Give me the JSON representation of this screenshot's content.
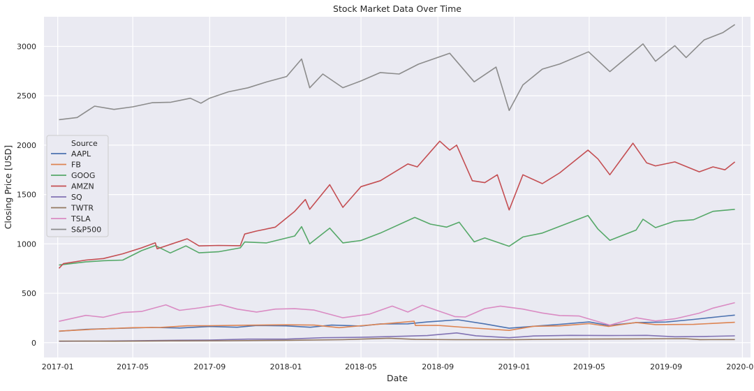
{
  "chart_data": {
    "type": "line",
    "title": "Stock Market Data Over Time",
    "xlabel": "Date",
    "ylabel": "Closing Price [USD]",
    "x_range": [
      "2016-12-10",
      "2020-01-14"
    ],
    "ylim": [
      -150,
      3300
    ],
    "grid": true,
    "background": "#eaeaf2",
    "x_ticks": [
      {
        "date": "2017-01-01",
        "label": "2017-01"
      },
      {
        "date": "2017-05-01",
        "label": "2017-05"
      },
      {
        "date": "2017-09-01",
        "label": "2017-09"
      },
      {
        "date": "2018-01-01",
        "label": "2018-01"
      },
      {
        "date": "2018-05-01",
        "label": "2018-05"
      },
      {
        "date": "2018-09-01",
        "label": "2018-09"
      },
      {
        "date": "2019-01-01",
        "label": "2019-01"
      },
      {
        "date": "2019-05-01",
        "label": "2019-05"
      },
      {
        "date": "2019-09-01",
        "label": "2019-09"
      },
      {
        "date": "2020-01-01",
        "label": "2020-01"
      }
    ],
    "y_ticks": [
      0,
      500,
      1000,
      1500,
      2000,
      2500,
      3000
    ],
    "legend": {
      "title": "Source",
      "placement": "center-left"
    },
    "series": [
      {
        "name": "AAPL",
        "color": "#4c72b0",
        "points": [
          [
            "2017-01-03",
            116
          ],
          [
            "2017-02-15",
            135
          ],
          [
            "2017-04-01",
            144
          ],
          [
            "2017-06-01",
            154
          ],
          [
            "2017-07-15",
            148
          ],
          [
            "2017-09-01",
            164
          ],
          [
            "2017-10-15",
            156
          ],
          [
            "2017-11-15",
            174
          ],
          [
            "2018-01-01",
            170
          ],
          [
            "2018-02-09",
            156
          ],
          [
            "2018-03-15",
            178
          ],
          [
            "2018-05-01",
            169
          ],
          [
            "2018-06-01",
            190
          ],
          [
            "2018-07-15",
            191
          ],
          [
            "2018-08-15",
            210
          ],
          [
            "2018-10-03",
            232
          ],
          [
            "2018-11-15",
            190
          ],
          [
            "2018-12-24",
            146
          ],
          [
            "2019-02-01",
            166
          ],
          [
            "2019-03-15",
            186
          ],
          [
            "2019-05-01",
            210
          ],
          [
            "2019-06-01",
            175
          ],
          [
            "2019-07-15",
            203
          ],
          [
            "2019-09-01",
            209
          ],
          [
            "2019-10-15",
            235
          ],
          [
            "2019-12-01",
            267
          ],
          [
            "2019-12-20",
            279
          ]
        ]
      },
      {
        "name": "FB",
        "color": "#dd8452",
        "points": [
          [
            "2017-01-03",
            117
          ],
          [
            "2017-03-01",
            136
          ],
          [
            "2017-05-01",
            152
          ],
          [
            "2017-06-15",
            155
          ],
          [
            "2017-07-27",
            171
          ],
          [
            "2017-09-01",
            172
          ],
          [
            "2017-10-15",
            176
          ],
          [
            "2018-01-01",
            181
          ],
          [
            "2018-02-15",
            178
          ],
          [
            "2018-03-27",
            152
          ],
          [
            "2018-05-01",
            172
          ],
          [
            "2018-06-15",
            195
          ],
          [
            "2018-07-25",
            217
          ],
          [
            "2018-07-27",
            174
          ],
          [
            "2018-09-01",
            175
          ],
          [
            "2018-10-15",
            154
          ],
          [
            "2018-12-24",
            124
          ],
          [
            "2019-02-01",
            166
          ],
          [
            "2019-03-15",
            170
          ],
          [
            "2019-05-01",
            193
          ],
          [
            "2019-06-01",
            165
          ],
          [
            "2019-07-15",
            204
          ],
          [
            "2019-08-15",
            183
          ],
          [
            "2019-10-15",
            185
          ],
          [
            "2019-12-01",
            201
          ],
          [
            "2019-12-20",
            206
          ]
        ]
      },
      {
        "name": "GOOG",
        "color": "#55a868",
        "points": [
          [
            "2017-01-03",
            786
          ],
          [
            "2017-02-15",
            818
          ],
          [
            "2017-03-15",
            830
          ],
          [
            "2017-04-15",
            836
          ],
          [
            "2017-05-15",
            932
          ],
          [
            "2017-06-06",
            983
          ],
          [
            "2017-06-30",
            908
          ],
          [
            "2017-07-25",
            980
          ],
          [
            "2017-08-15",
            910
          ],
          [
            "2017-09-15",
            920
          ],
          [
            "2017-10-20",
            960
          ],
          [
            "2017-10-27",
            1019
          ],
          [
            "2017-12-01",
            1010
          ],
          [
            "2018-01-15",
            1080
          ],
          [
            "2018-01-26",
            1175
          ],
          [
            "2018-02-08",
            1001
          ],
          [
            "2018-03-12",
            1160
          ],
          [
            "2018-04-02",
            1010
          ],
          [
            "2018-05-01",
            1035
          ],
          [
            "2018-06-01",
            1110
          ],
          [
            "2018-07-26",
            1268
          ],
          [
            "2018-08-20",
            1200
          ],
          [
            "2018-09-15",
            1170
          ],
          [
            "2018-10-05",
            1220
          ],
          [
            "2018-10-29",
            1021
          ],
          [
            "2018-11-15",
            1060
          ],
          [
            "2018-12-24",
            976
          ],
          [
            "2019-01-15",
            1070
          ],
          [
            "2019-02-15",
            1110
          ],
          [
            "2019-04-29",
            1288
          ],
          [
            "2019-05-15",
            1150
          ],
          [
            "2019-06-03",
            1036
          ],
          [
            "2019-07-15",
            1140
          ],
          [
            "2019-07-26",
            1250
          ],
          [
            "2019-08-15",
            1165
          ],
          [
            "2019-09-15",
            1230
          ],
          [
            "2019-10-15",
            1245
          ],
          [
            "2019-11-15",
            1330
          ],
          [
            "2019-12-20",
            1350
          ]
        ]
      },
      {
        "name": "AMZN",
        "color": "#c44e52",
        "points": [
          [
            "2017-01-03",
            753
          ],
          [
            "2017-01-10",
            800
          ],
          [
            "2017-02-15",
            836
          ],
          [
            "2017-03-15",
            852
          ],
          [
            "2017-04-15",
            900
          ],
          [
            "2017-05-15",
            960
          ],
          [
            "2017-06-06",
            1011
          ],
          [
            "2017-06-09",
            950
          ],
          [
            "2017-07-27",
            1052
          ],
          [
            "2017-08-15",
            980
          ],
          [
            "2017-09-15",
            985
          ],
          [
            "2017-10-20",
            982
          ],
          [
            "2017-10-27",
            1100
          ],
          [
            "2017-11-15",
            1130
          ],
          [
            "2017-12-15",
            1170
          ],
          [
            "2018-01-15",
            1330
          ],
          [
            "2018-02-01",
            1450
          ],
          [
            "2018-02-08",
            1350
          ],
          [
            "2018-03-12",
            1600
          ],
          [
            "2018-04-02",
            1370
          ],
          [
            "2018-05-01",
            1580
          ],
          [
            "2018-06-01",
            1640
          ],
          [
            "2018-07-15",
            1810
          ],
          [
            "2018-07-30",
            1780
          ],
          [
            "2018-09-04",
            2040
          ],
          [
            "2018-09-20",
            1950
          ],
          [
            "2018-10-01",
            2000
          ],
          [
            "2018-10-26",
            1640
          ],
          [
            "2018-11-15",
            1620
          ],
          [
            "2018-12-05",
            1700
          ],
          [
            "2018-12-24",
            1344
          ],
          [
            "2019-01-15",
            1700
          ],
          [
            "2019-02-15",
            1610
          ],
          [
            "2019-03-15",
            1720
          ],
          [
            "2019-04-29",
            1950
          ],
          [
            "2019-05-15",
            1860
          ],
          [
            "2019-06-03",
            1700
          ],
          [
            "2019-07-10",
            2020
          ],
          [
            "2019-08-01",
            1820
          ],
          [
            "2019-08-15",
            1790
          ],
          [
            "2019-09-15",
            1830
          ],
          [
            "2019-10-24",
            1730
          ],
          [
            "2019-11-15",
            1780
          ],
          [
            "2019-12-04",
            1750
          ],
          [
            "2019-12-20",
            1830
          ]
        ]
      },
      {
        "name": "SQ",
        "color": "#8172b3",
        "points": [
          [
            "2017-01-03",
            14
          ],
          [
            "2017-03-01",
            16
          ],
          [
            "2017-05-01",
            20
          ],
          [
            "2017-07-01",
            24
          ],
          [
            "2017-09-01",
            27
          ],
          [
            "2017-11-01",
            36
          ],
          [
            "2018-01-01",
            36
          ],
          [
            "2018-03-01",
            50
          ],
          [
            "2018-05-01",
            54
          ],
          [
            "2018-07-01",
            64
          ],
          [
            "2018-08-15",
            72
          ],
          [
            "2018-10-01",
            99
          ],
          [
            "2018-11-01",
            70
          ],
          [
            "2018-12-24",
            50
          ],
          [
            "2019-02-01",
            68
          ],
          [
            "2019-04-01",
            74
          ],
          [
            "2019-06-01",
            72
          ],
          [
            "2019-08-01",
            74
          ],
          [
            "2019-09-15",
            60
          ],
          [
            "2019-11-01",
            63
          ],
          [
            "2019-12-20",
            69
          ]
        ]
      },
      {
        "name": "TWTR",
        "color": "#937860",
        "points": [
          [
            "2017-01-03",
            16
          ],
          [
            "2017-04-01",
            15
          ],
          [
            "2017-07-01",
            18
          ],
          [
            "2017-10-01",
            20
          ],
          [
            "2018-01-01",
            24
          ],
          [
            "2018-04-01",
            30
          ],
          [
            "2018-06-15",
            45
          ],
          [
            "2018-07-27",
            33
          ],
          [
            "2018-10-01",
            30
          ],
          [
            "2019-01-01",
            30
          ],
          [
            "2019-04-01",
            36
          ],
          [
            "2019-07-01",
            38
          ],
          [
            "2019-10-01",
            41
          ],
          [
            "2019-10-25",
            31
          ],
          [
            "2019-12-20",
            32
          ]
        ]
      },
      {
        "name": "TSLA",
        "color": "#da8bc3",
        "points": [
          [
            "2017-01-03",
            216
          ],
          [
            "2017-02-15",
            276
          ],
          [
            "2017-03-15",
            257
          ],
          [
            "2017-04-15",
            305
          ],
          [
            "2017-05-15",
            316
          ],
          [
            "2017-06-23",
            383
          ],
          [
            "2017-07-15",
            327
          ],
          [
            "2017-08-15",
            352
          ],
          [
            "2017-09-18",
            385
          ],
          [
            "2017-10-15",
            340
          ],
          [
            "2017-11-15",
            310
          ],
          [
            "2017-12-15",
            340
          ],
          [
            "2018-01-15",
            344
          ],
          [
            "2018-02-15",
            330
          ],
          [
            "2018-04-02",
            252
          ],
          [
            "2018-05-15",
            290
          ],
          [
            "2018-06-20",
            370
          ],
          [
            "2018-07-15",
            310
          ],
          [
            "2018-08-07",
            379
          ],
          [
            "2018-09-28",
            264
          ],
          [
            "2018-10-15",
            260
          ],
          [
            "2018-11-15",
            345
          ],
          [
            "2018-12-10",
            370
          ],
          [
            "2019-01-15",
            340
          ],
          [
            "2019-02-15",
            300
          ],
          [
            "2019-03-15",
            275
          ],
          [
            "2019-04-15",
            270
          ],
          [
            "2019-06-03",
            178
          ],
          [
            "2019-07-15",
            252
          ],
          [
            "2019-08-15",
            220
          ],
          [
            "2019-09-15",
            242
          ],
          [
            "2019-10-24",
            299
          ],
          [
            "2019-11-15",
            350
          ],
          [
            "2019-12-20",
            405
          ]
        ]
      },
      {
        "name": "S&P500",
        "color": "#8c8c8c",
        "points": [
          [
            "2017-01-03",
            2258
          ],
          [
            "2017-02-01",
            2280
          ],
          [
            "2017-03-01",
            2395
          ],
          [
            "2017-04-01",
            2362
          ],
          [
            "2017-05-01",
            2388
          ],
          [
            "2017-06-01",
            2430
          ],
          [
            "2017-07-01",
            2435
          ],
          [
            "2017-08-01",
            2475
          ],
          [
            "2017-08-18",
            2425
          ],
          [
            "2017-09-01",
            2476
          ],
          [
            "2017-10-01",
            2540
          ],
          [
            "2017-11-01",
            2580
          ],
          [
            "2017-12-01",
            2640
          ],
          [
            "2018-01-02",
            2695
          ],
          [
            "2018-01-26",
            2872
          ],
          [
            "2018-02-08",
            2581
          ],
          [
            "2018-03-01",
            2720
          ],
          [
            "2018-04-02",
            2582
          ],
          [
            "2018-05-01",
            2650
          ],
          [
            "2018-06-01",
            2735
          ],
          [
            "2018-07-01",
            2720
          ],
          [
            "2018-08-01",
            2820
          ],
          [
            "2018-09-20",
            2930
          ],
          [
            "2018-10-29",
            2641
          ],
          [
            "2018-12-03",
            2790
          ],
          [
            "2018-12-24",
            2351
          ],
          [
            "2019-01-15",
            2610
          ],
          [
            "2019-02-15",
            2770
          ],
          [
            "2019-03-15",
            2822
          ],
          [
            "2019-04-30",
            2945
          ],
          [
            "2019-06-03",
            2744
          ],
          [
            "2019-07-26",
            3025
          ],
          [
            "2019-08-15",
            2850
          ],
          [
            "2019-09-15",
            3007
          ],
          [
            "2019-10-03",
            2887
          ],
          [
            "2019-11-01",
            3066
          ],
          [
            "2019-12-01",
            3140
          ],
          [
            "2019-12-20",
            3221
          ]
        ]
      }
    ]
  }
}
